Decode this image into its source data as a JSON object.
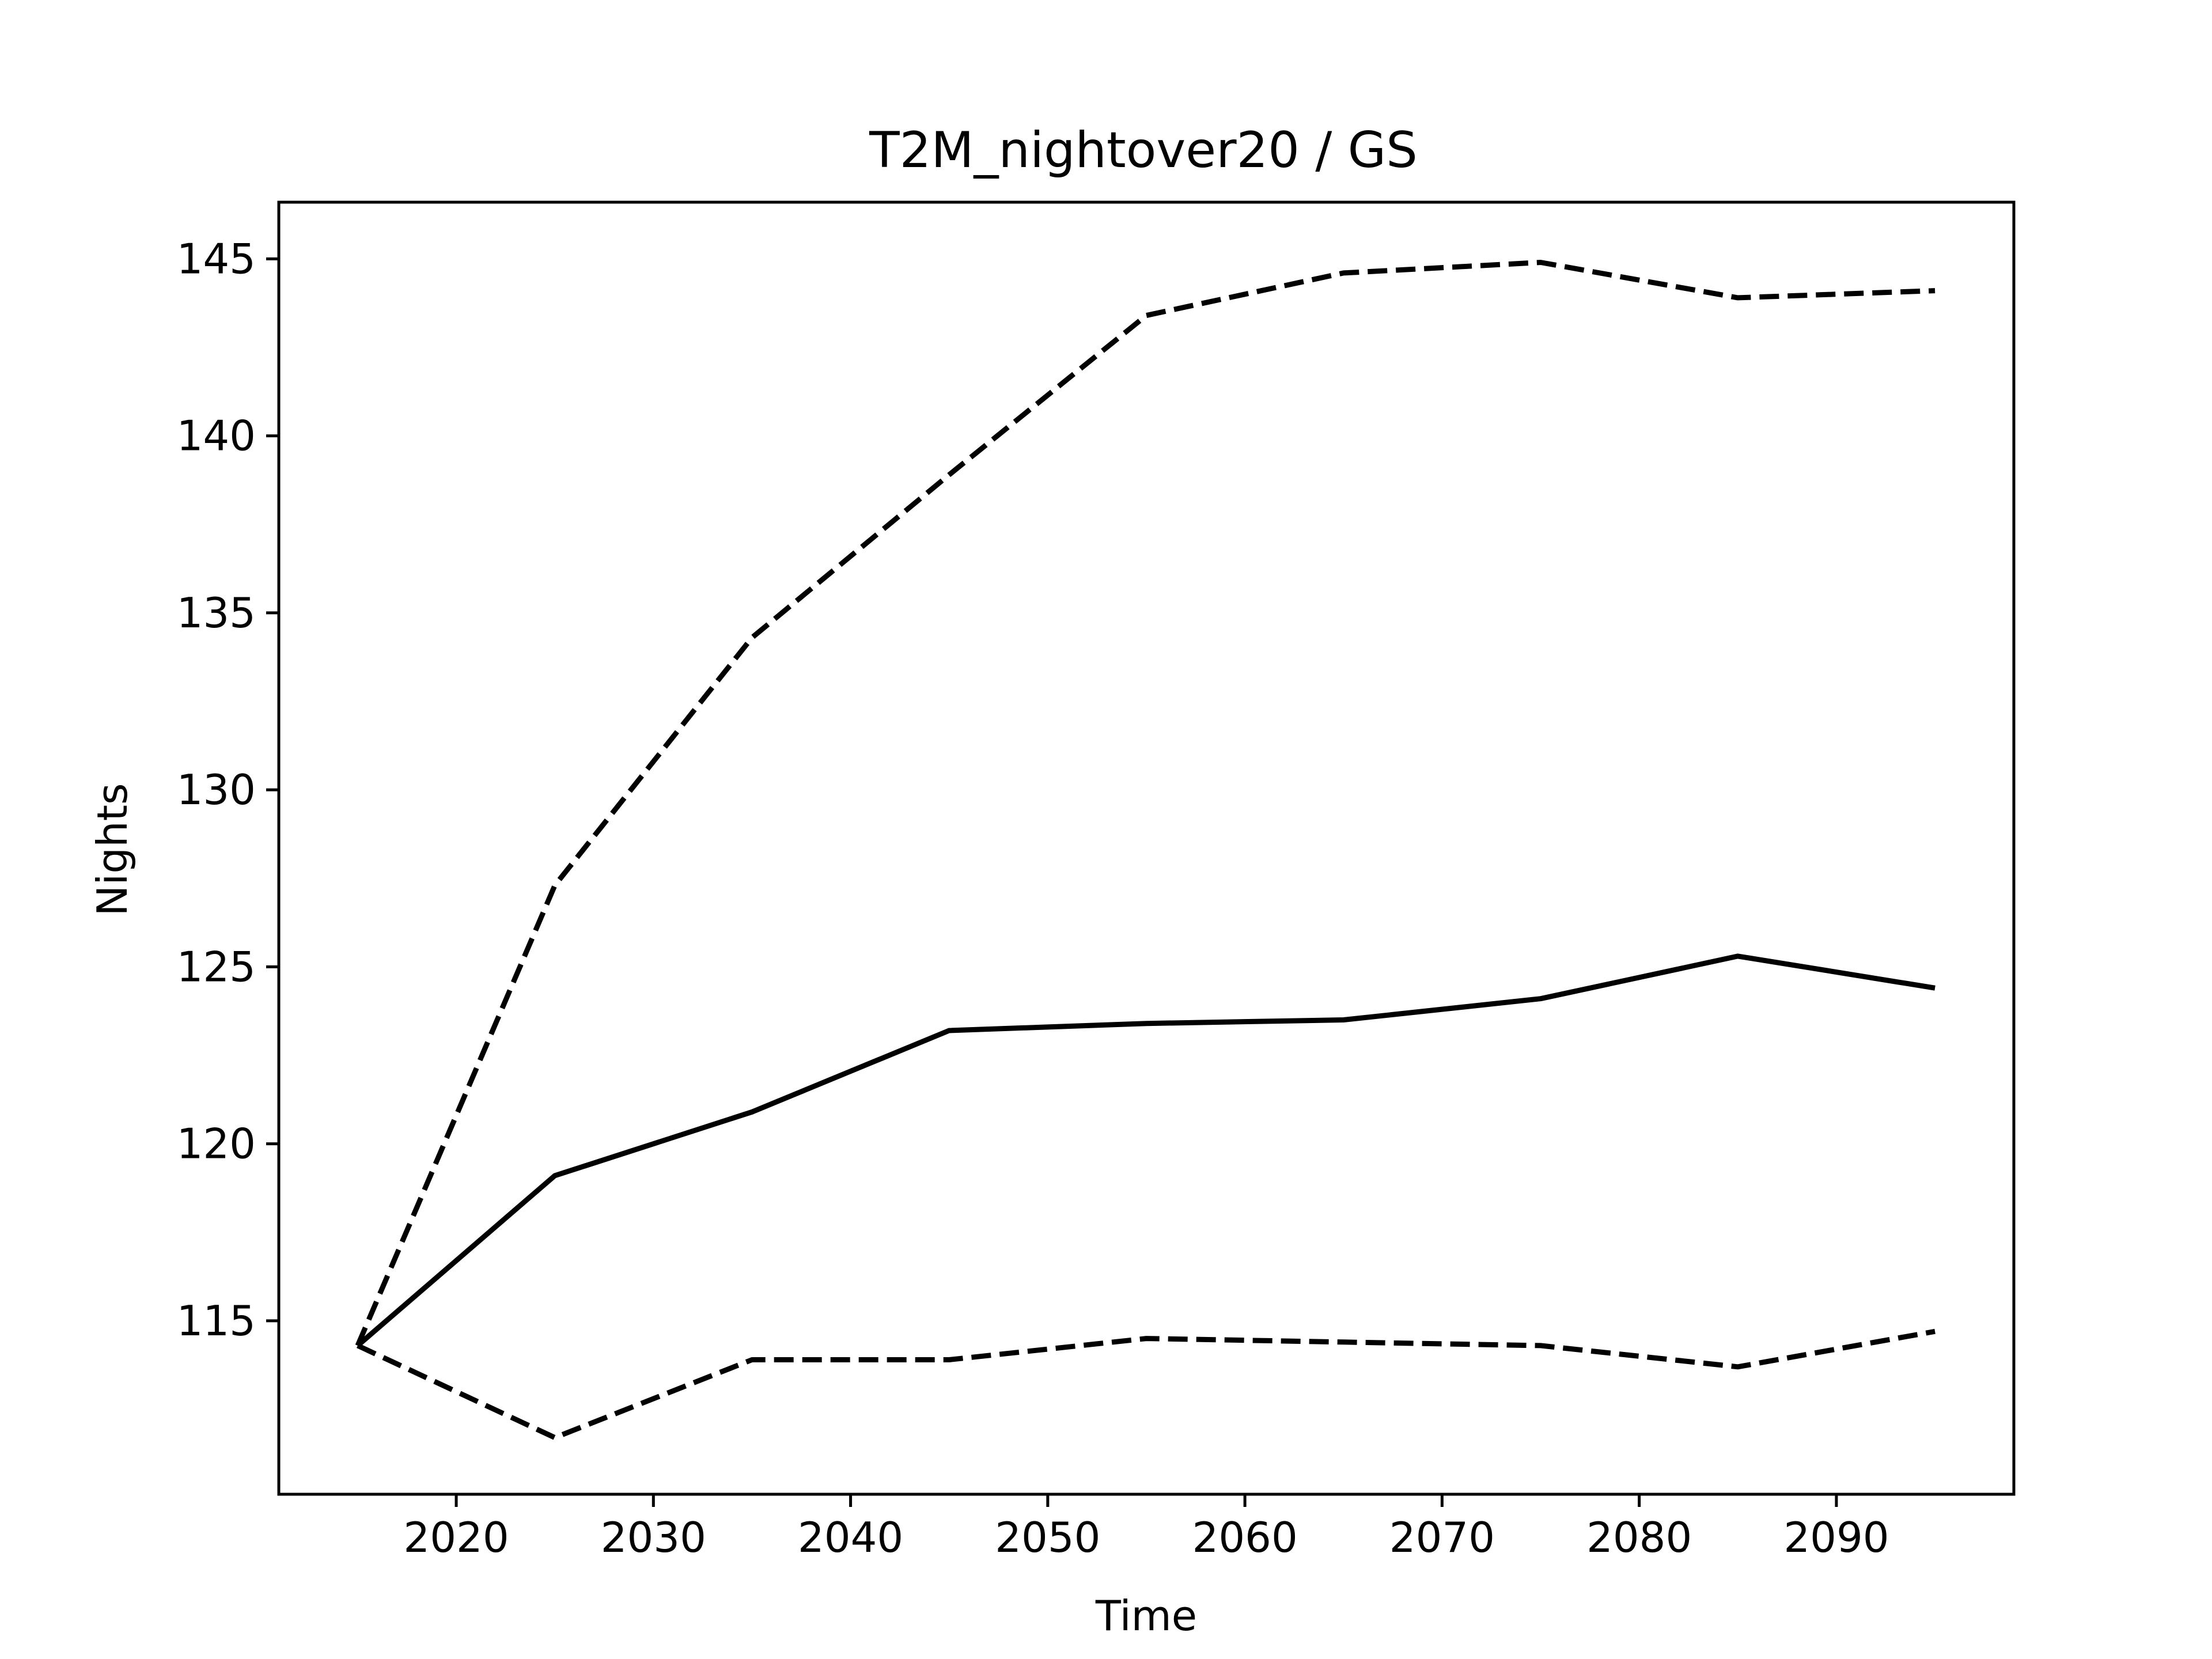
{
  "chart_data": {
    "type": "line",
    "title": "T2M_nightover20 / GS",
    "xlabel": "Time",
    "ylabel": "Nights",
    "xlim": [
      2011,
      2099
    ],
    "ylim": [
      110.1,
      146.6
    ],
    "xticks": [
      2020,
      2030,
      2040,
      2050,
      2060,
      2070,
      2080,
      2090
    ],
    "yticks": [
      115,
      120,
      125,
      130,
      135,
      140,
      145
    ],
    "grid": false,
    "line_color": "#000000",
    "x": [
      2015,
      2025,
      2035,
      2045,
      2055,
      2065,
      2075,
      2085,
      2095
    ],
    "series": [
      {
        "style": "solid",
        "values": [
          114.3,
          119.1,
          120.9,
          123.2,
          123.4,
          123.5,
          124.1,
          125.3,
          124.4
        ]
      },
      {
        "style": "dashed",
        "values": [
          114.3,
          127.3,
          134.3,
          138.9,
          143.4,
          144.6,
          144.9,
          143.9,
          144.1
        ]
      },
      {
        "style": "dashed",
        "values": [
          114.3,
          111.7,
          113.9,
          113.9,
          114.5,
          114.4,
          114.3,
          113.7,
          114.7
        ]
      }
    ]
  }
}
